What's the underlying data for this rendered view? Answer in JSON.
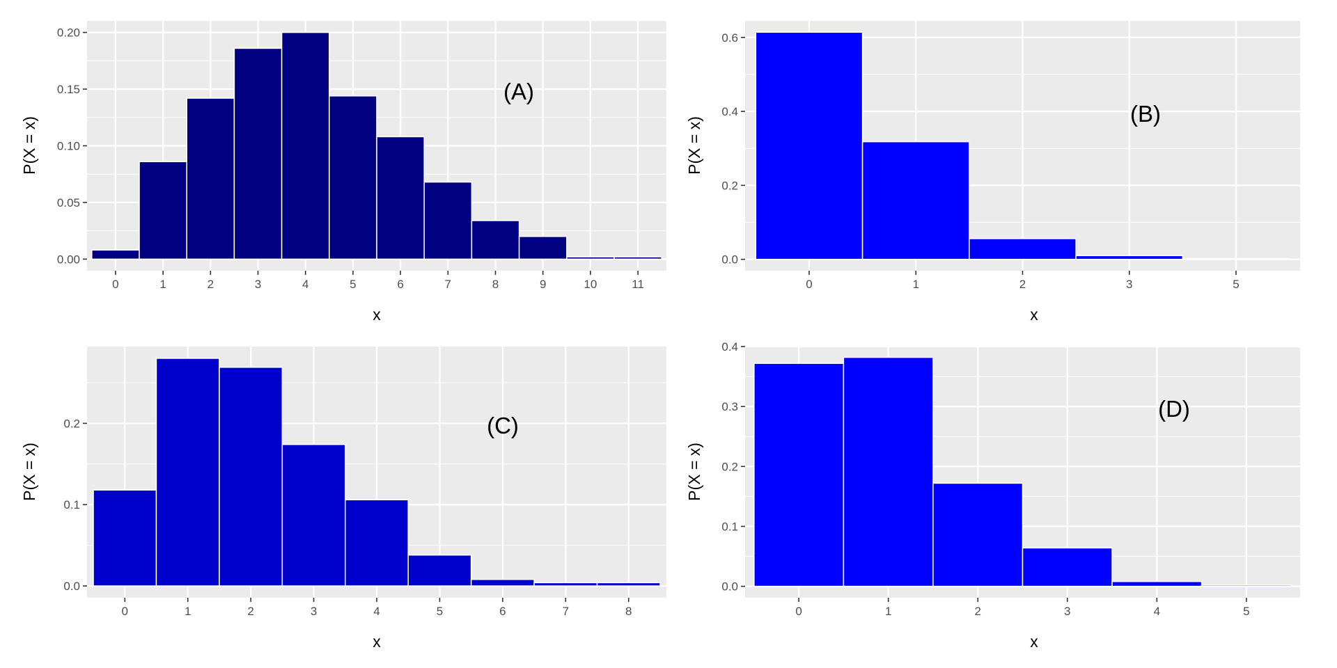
{
  "figure": {
    "panel_background": "#ebebeb",
    "grid_color": "#ffffff",
    "tick_text_color": "#4d4d4d",
    "bar_outline_color": "#ffffff"
  },
  "chart_data": [
    {
      "id": "A",
      "type": "bar",
      "label": "(A)",
      "xlabel": "x",
      "ylabel": "P(X = x)",
      "color": "#000080",
      "categories": [
        "0",
        "1",
        "2",
        "3",
        "4",
        "5",
        "6",
        "7",
        "8",
        "9",
        "10",
        "11"
      ],
      "values": [
        0.008,
        0.086,
        0.142,
        0.186,
        0.2,
        0.144,
        0.108,
        0.068,
        0.034,
        0.02,
        0.002,
        0.002
      ],
      "yticks": [
        0.0,
        0.05,
        0.1,
        0.15,
        0.2
      ],
      "ytick_labels": [
        "0.00",
        "0.05",
        "0.10",
        "0.15",
        "0.20"
      ],
      "ylim": [
        -0.0102,
        0.2102
      ],
      "grid": true,
      "label_position": "upper-right"
    },
    {
      "id": "B",
      "type": "bar",
      "label": "(B)",
      "xlabel": "x",
      "ylabel": "P(X = x)",
      "color": "#0000ff",
      "categories": [
        "0",
        "1",
        "2",
        "3",
        "5"
      ],
      "values": [
        0.614,
        0.318,
        0.056,
        0.01,
        0.002
      ],
      "yticks": [
        0.0,
        0.2,
        0.4,
        0.6
      ],
      "ytick_labels": [
        "0.0",
        "0.2",
        "0.4",
        "0.6"
      ],
      "ylim": [
        -0.0307,
        0.6447
      ],
      "grid": true,
      "label_position": "upper-right"
    },
    {
      "id": "C",
      "type": "bar",
      "label": "(C)",
      "xlabel": "x",
      "ylabel": "P(X = x)",
      "color": "#0000cd",
      "categories": [
        "0",
        "1",
        "2",
        "3",
        "4",
        "5",
        "6",
        "7",
        "8"
      ],
      "values": [
        0.118,
        0.28,
        0.269,
        0.174,
        0.106,
        0.038,
        0.008,
        0.004,
        0.004
      ],
      "yticks": [
        0.0,
        0.1,
        0.2
      ],
      "ytick_labels": [
        "0.0",
        "0.1",
        "0.2"
      ],
      "ylim": [
        -0.0145,
        0.2945
      ],
      "grid": true,
      "label_position": "upper-right"
    },
    {
      "id": "D",
      "type": "bar",
      "label": "(D)",
      "xlabel": "x",
      "ylabel": "P(X = x)",
      "color": "#0000ff",
      "categories": [
        "0",
        "1",
        "2",
        "3",
        "4",
        "5"
      ],
      "values": [
        0.372,
        0.382,
        0.172,
        0.064,
        0.008,
        0.002
      ],
      "yticks": [
        0.0,
        0.1,
        0.2,
        0.3,
        0.4
      ],
      "ytick_labels": [
        "0.0",
        "0.1",
        "0.2",
        "0.3",
        "0.4"
      ],
      "ylim": [
        -0.01905,
        0.40005
      ],
      "grid": true,
      "label_position": "upper-right"
    }
  ]
}
